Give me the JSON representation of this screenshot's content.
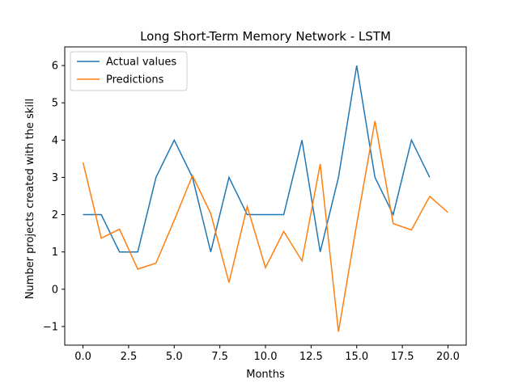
{
  "chart_data": {
    "type": "line",
    "title": "Long Short-Term Memory Network - LSTM",
    "xlabel": "Months",
    "ylabel": "Number projects created with the skill",
    "xlim": [
      -1.0,
      21.0
    ],
    "ylim": [
      -1.5,
      6.5
    ],
    "xticks": [
      0.0,
      2.5,
      5.0,
      7.5,
      10.0,
      12.5,
      15.0,
      17.5,
      20.0
    ],
    "xtick_labels": [
      "0.0",
      "2.5",
      "5.0",
      "7.5",
      "10.0",
      "12.5",
      "15.0",
      "17.5",
      "20.0"
    ],
    "yticks": [
      -1,
      0,
      1,
      2,
      3,
      4,
      5,
      6
    ],
    "ytick_labels": [
      "−1",
      "0",
      "1",
      "2",
      "3",
      "4",
      "5",
      "6"
    ],
    "grid": false,
    "legend_position": "top-left",
    "series": [
      {
        "name": "Actual values",
        "color": "#1f77b4",
        "x": [
          0,
          1,
          2,
          3,
          4,
          5,
          6,
          7,
          8,
          9,
          10,
          11,
          12,
          13,
          14,
          15,
          16,
          17,
          18,
          19
        ],
        "values": [
          2,
          2,
          1,
          1,
          3,
          4,
          3,
          1,
          3,
          2,
          2,
          2,
          4,
          1,
          3,
          6,
          3,
          2,
          4,
          3
        ]
      },
      {
        "name": "Predictions",
        "color": "#ff7f0e",
        "x": [
          0,
          1,
          2,
          3,
          4,
          5,
          6,
          7,
          8,
          9,
          10,
          11,
          12,
          13,
          14,
          15,
          16,
          17,
          18,
          19,
          20
        ],
        "values": [
          3.4,
          1.37,
          1.61,
          0.54,
          0.7,
          1.85,
          3.05,
          2.03,
          0.18,
          2.22,
          0.58,
          1.55,
          0.76,
          3.36,
          -1.14,
          1.75,
          4.51,
          1.76,
          1.59,
          2.49,
          2.06
        ]
      }
    ]
  }
}
